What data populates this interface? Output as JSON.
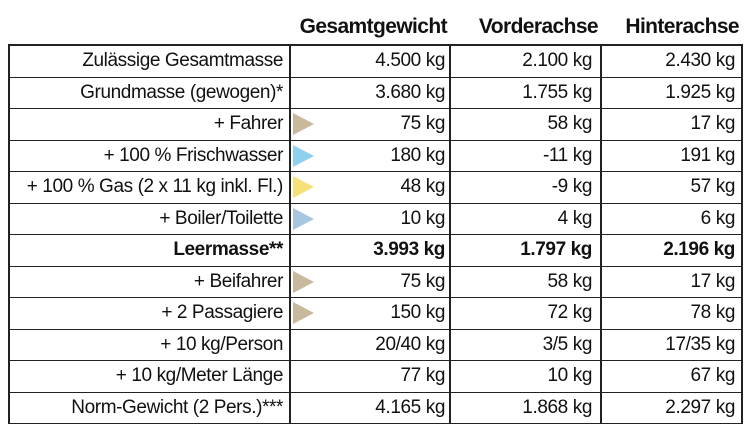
{
  "columns": [
    "Gesamtgewicht",
    "Vorderachse",
    "Hinterachse"
  ],
  "colors": {
    "person": "#c8b89c",
    "water": "#8fd0ee",
    "gas": "#f7df7a",
    "boiler": "#a9c6e1"
  },
  "rows": [
    {
      "label": "Zulässige Gesamtmasse",
      "total": "4.500 kg",
      "front": "2.100 kg",
      "rear": "2.430 kg",
      "marker": null,
      "bold": false
    },
    {
      "label": "Grundmasse (gewogen)*",
      "total": "3.680 kg",
      "front": "1.755 kg",
      "rear": "1.925 kg",
      "marker": null,
      "bold": false
    },
    {
      "label": "+ Fahrer",
      "total": "75 kg",
      "front": "58 kg",
      "rear": "17 kg",
      "marker": "person",
      "bold": false
    },
    {
      "label": "+ 100 % Frischwasser",
      "total": "180 kg",
      "front": "-11 kg",
      "rear": "191 kg",
      "marker": "water",
      "bold": false
    },
    {
      "label": "+ 100 % Gas (2 x 11 kg inkl. Fl.)",
      "total": "48 kg",
      "front": "-9 kg",
      "rear": "57 kg",
      "marker": "gas",
      "bold": false
    },
    {
      "label": "+ Boiler/Toilette",
      "total": "10 kg",
      "front": "4 kg",
      "rear": "6 kg",
      "marker": "boiler",
      "bold": false
    },
    {
      "label": "Leermasse**",
      "total": "3.993 kg",
      "front": "1.797 kg",
      "rear": "2.196 kg",
      "marker": null,
      "bold": true
    },
    {
      "label": "+ Beifahrer",
      "total": "75 kg",
      "front": "58 kg",
      "rear": "17 kg",
      "marker": "person",
      "bold": false
    },
    {
      "label": "+ 2 Passagiere",
      "total": "150 kg",
      "front": "72 kg",
      "rear": "78 kg",
      "marker": "person",
      "bold": false
    },
    {
      "label": "+ 10 kg/Person",
      "total": "20/40 kg",
      "front": "3/5 kg",
      "rear": "17/35 kg",
      "marker": null,
      "bold": false
    },
    {
      "label": "+ 10 kg/Meter Länge",
      "total": "77 kg",
      "front": "10 kg",
      "rear": "67 kg",
      "marker": null,
      "bold": false
    },
    {
      "label": "Norm-Gewicht (2 Pers.)***",
      "total": "4.165 kg",
      "front": "1.868 kg",
      "rear": "2.297 kg",
      "marker": null,
      "bold": false
    }
  ]
}
